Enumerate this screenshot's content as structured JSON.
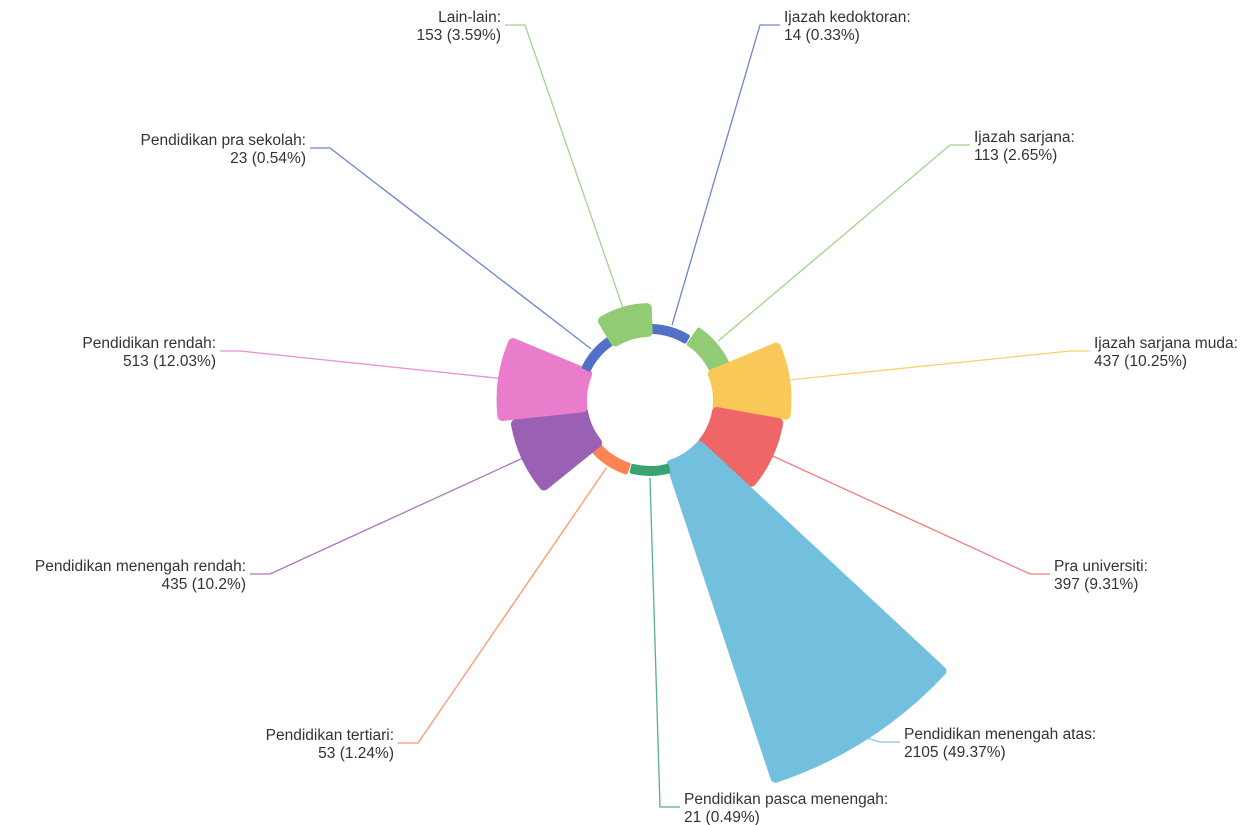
{
  "chart_data": {
    "type": "nightingale-rose",
    "title": "",
    "start_angle_deg": 0,
    "slices": [
      {
        "name": "Ijazah kedoktoran",
        "value": 14,
        "percent_label": "14 (0.33%)",
        "color": "#5470c6"
      },
      {
        "name": "Ijazah sarjana",
        "value": 113,
        "percent_label": "113 (2.65%)",
        "color": "#91cc75"
      },
      {
        "name": "Ijazah sarjana muda",
        "value": 437,
        "percent_label": "437 (10.25%)",
        "color": "#fac858"
      },
      {
        "name": "Pra universiti",
        "value": 397,
        "percent_label": "397 (9.31%)",
        "color": "#ee6666"
      },
      {
        "name": "Pendidikan menengah atas",
        "value": 2105,
        "percent_label": "2105 (49.37%)",
        "color": "#73c0de"
      },
      {
        "name": "Pendidikan pasca menengah",
        "value": 21,
        "percent_label": "21 (0.49%)",
        "color": "#3ba272"
      },
      {
        "name": "Pendidikan tertiari",
        "value": 53,
        "percent_label": "53 (1.24%)",
        "color": "#fc8452"
      },
      {
        "name": "Pendidikan menengah rendah",
        "value": 435,
        "percent_label": "435 (10.2%)",
        "color": "#9a60b4"
      },
      {
        "name": "Pendidikan rendah",
        "value": 513,
        "percent_label": "513 (12.03%)",
        "color": "#ea7ccc"
      },
      {
        "name": "Pendidikan pra sekolah",
        "value": 23,
        "percent_label": "23 (0.54%)",
        "color": "#5470c6"
      },
      {
        "name": "Lain-lain",
        "value": 153,
        "percent_label": "153 (3.59%)",
        "color": "#91cc75"
      }
    ]
  }
}
